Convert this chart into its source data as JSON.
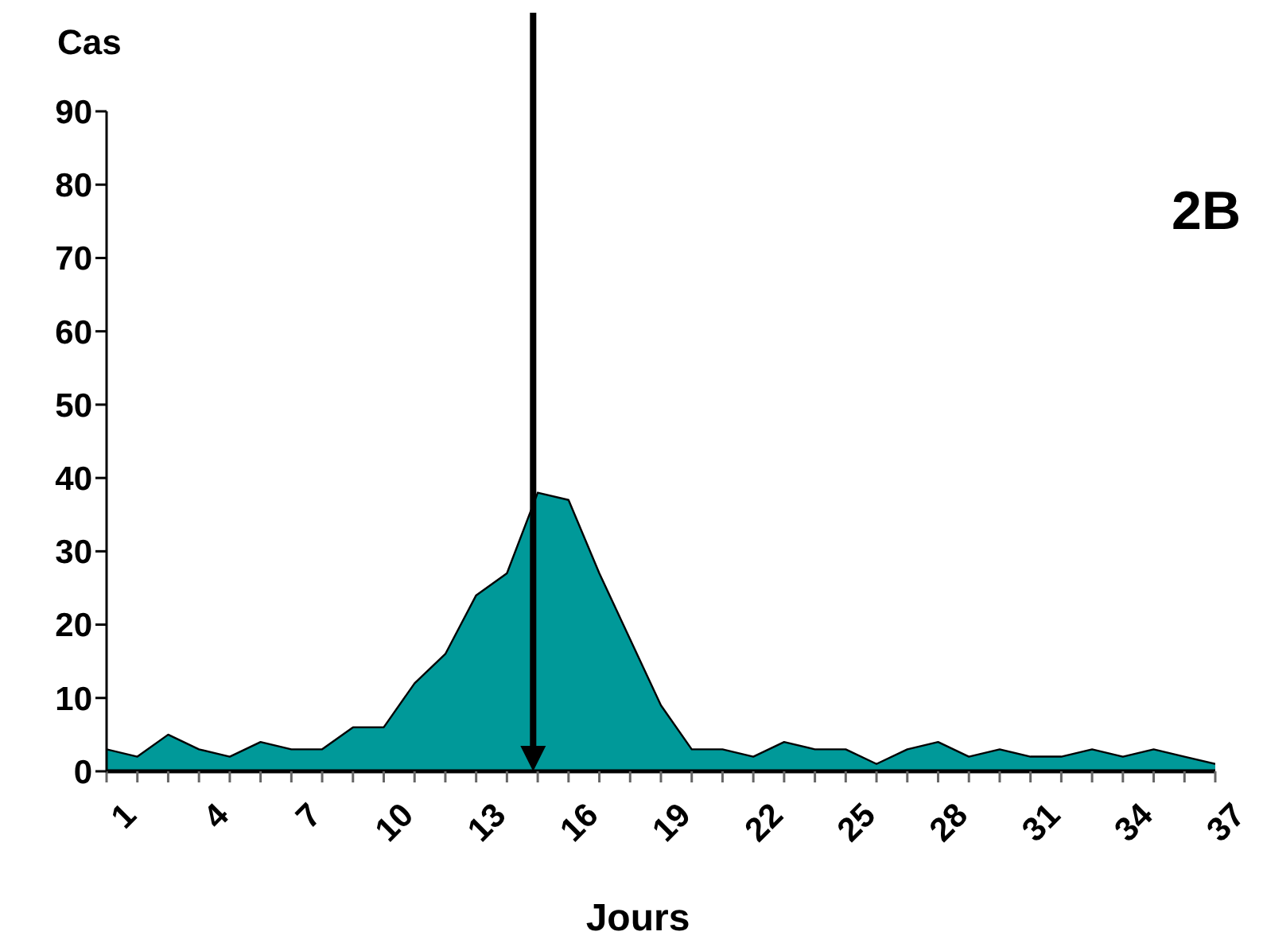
{
  "chart_data": {
    "type": "area",
    "xlabel": "Jours",
    "ylabel": "Cas",
    "annotations": [
      "2B"
    ],
    "categories": [
      "1",
      null,
      null,
      "4",
      null,
      null,
      "7",
      null,
      null,
      "10",
      null,
      null,
      "13",
      null,
      null,
      "16",
      null,
      null,
      "19",
      null,
      null,
      "22",
      null,
      null,
      "25",
      null,
      null,
      "28",
      null,
      null,
      "31",
      null,
      null,
      "34",
      null,
      null,
      "37"
    ],
    "series": [
      {
        "color": "#009999",
        "values": [
          3,
          2,
          5,
          3,
          2,
          4,
          3,
          3,
          6,
          6,
          12,
          16,
          24,
          27,
          38,
          37,
          27,
          18,
          9,
          3,
          3,
          2,
          4,
          3,
          3,
          1,
          3,
          4,
          2,
          3,
          2,
          2,
          3,
          2,
          3,
          2,
          1
        ]
      }
    ],
    "ylim": [
      0,
      90
    ],
    "yticks": [
      0,
      10,
      20,
      30,
      40,
      50,
      60,
      70,
      80,
      90
    ]
  }
}
